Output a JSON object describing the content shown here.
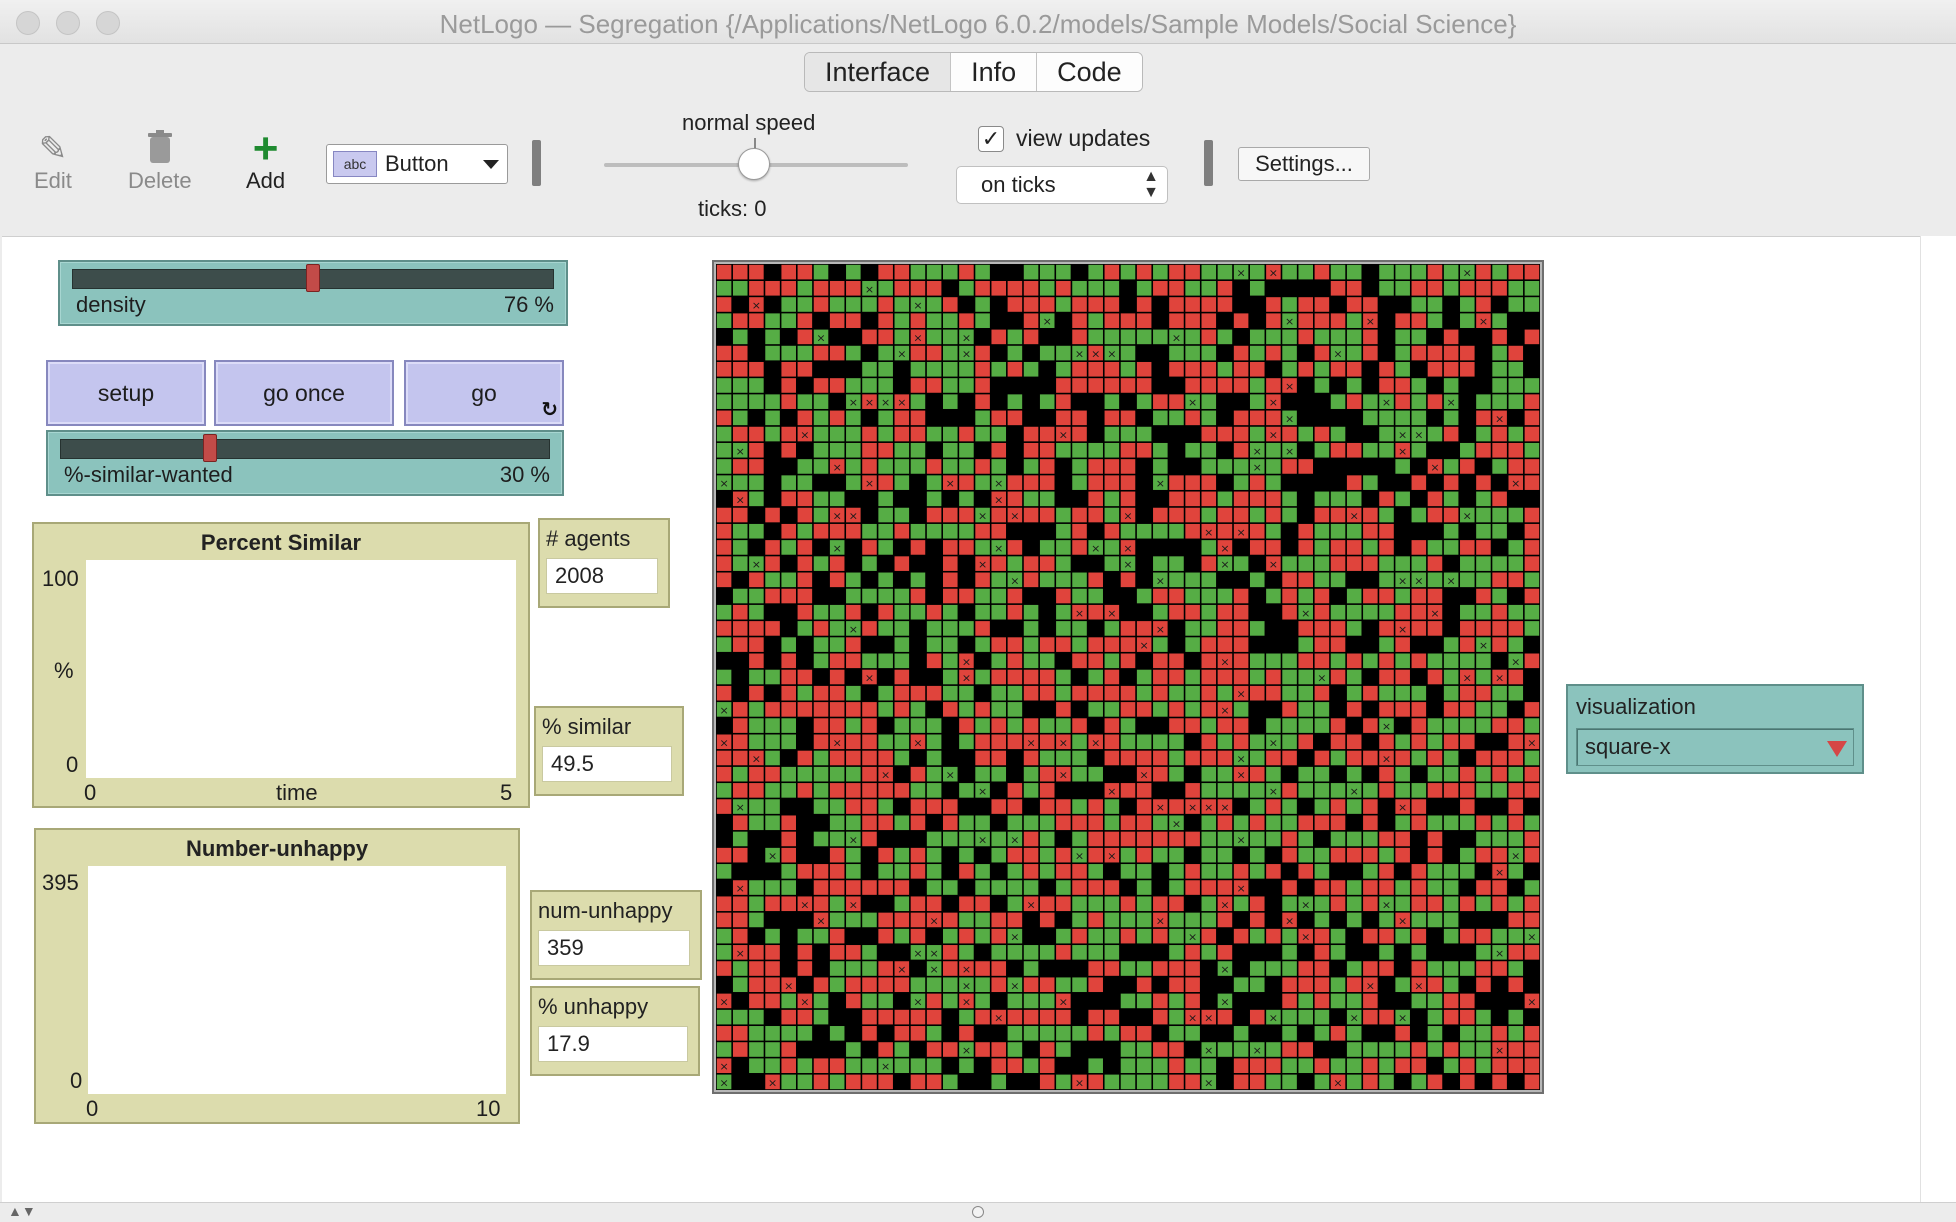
{
  "window": {
    "title": "NetLogo — Segregation {/Applications/NetLogo 6.0.2/models/Sample Models/Social Science}"
  },
  "tabs": [
    {
      "label": "Interface",
      "active": true
    },
    {
      "label": "Info",
      "active": false
    },
    {
      "label": "Code",
      "active": false
    }
  ],
  "toolbar": {
    "edit_label": "Edit",
    "delete_label": "Delete",
    "add_label": "Add",
    "widget_type": "Button",
    "widget_type_icon_text": "abc",
    "speed_label": "normal speed",
    "ticks_label": "ticks: 0",
    "view_updates_label": "view updates",
    "view_updates_checked": true,
    "update_mode": "on ticks",
    "settings_label": "Settings..."
  },
  "sliders": {
    "density": {
      "name": "density",
      "value": "76 %",
      "level": 0.5
    },
    "similar_wanted": {
      "name": "%-similar-wanted",
      "value": "30 %",
      "level": 0.3
    }
  },
  "buttons": {
    "setup": "setup",
    "go_once": "go once",
    "go": "go",
    "forever_icon": "↻"
  },
  "plots": {
    "percent_similar": {
      "title": "Percent Similar",
      "y_max": "100",
      "y_min": "0",
      "y_label": "%",
      "x_min": "0",
      "x_max": "5",
      "x_label": "time"
    },
    "number_unhappy": {
      "title": "Number-unhappy",
      "y_max": "395",
      "y_min": "0",
      "x_min": "0",
      "x_max": "10"
    }
  },
  "monitors": {
    "agents": {
      "label": "# agents",
      "value": "2008"
    },
    "similar": {
      "label": "% similar",
      "value": "49.5"
    },
    "num_unhappy": {
      "label": "num-unhappy",
      "value": "359"
    },
    "unhappy": {
      "label": "% unhappy",
      "value": "17.9"
    }
  },
  "world": {
    "cols": 51,
    "rows": 51,
    "colors": {
      "red": "#e0443c",
      "green": "#56ad45",
      "empty": "#000000",
      "mark": "#1a1a1a"
    }
  },
  "chooser": {
    "label": "visualization",
    "value": "square-x"
  },
  "statusbar": {
    "arrows": "▲▼"
  }
}
